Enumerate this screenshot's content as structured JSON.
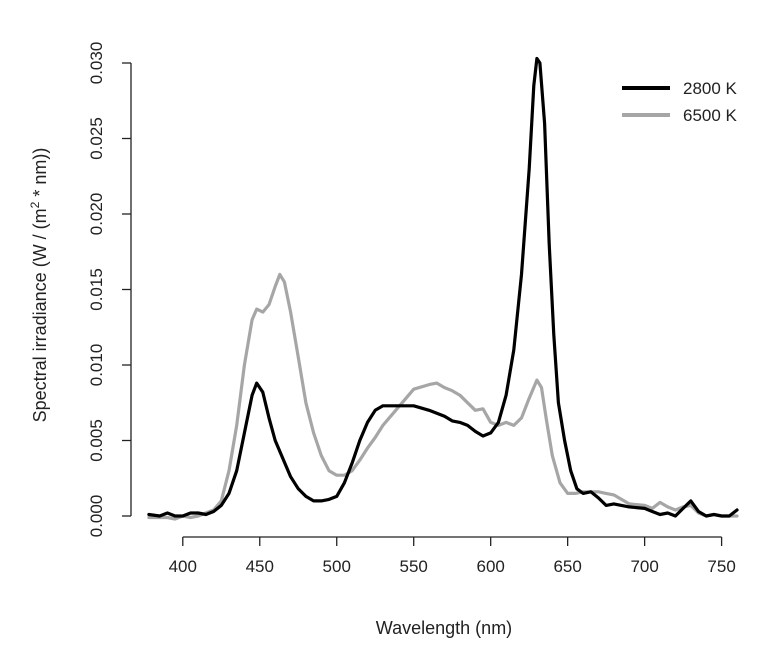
{
  "chart_data": {
    "type": "line",
    "xlabel": "Wavelength (nm)",
    "ylabel_pre": "Spectral irradiance (W / (m",
    "ylabel_sup": "2",
    "ylabel_post": " * nm))",
    "xlim": [
      380,
      760
    ],
    "ylim": [
      0,
      0.03
    ],
    "xticks": [
      400,
      450,
      500,
      550,
      600,
      650,
      700,
      750
    ],
    "yticks": [
      "0.000",
      "0.005",
      "0.010",
      "0.015",
      "0.020",
      "0.025",
      "0.030"
    ],
    "grid": false,
    "legend_position": "top-right",
    "series": [
      {
        "name": "2800 K",
        "color": "#000000",
        "points": [
          [
            378,
            0.0001
          ],
          [
            385,
            0.0
          ],
          [
            390,
            0.0002
          ],
          [
            395,
            0.0
          ],
          [
            400,
            0.0
          ],
          [
            405,
            0.0002
          ],
          [
            410,
            0.0002
          ],
          [
            415,
            0.0001
          ],
          [
            420,
            0.0003
          ],
          [
            425,
            0.0007
          ],
          [
            430,
            0.0015
          ],
          [
            435,
            0.003
          ],
          [
            440,
            0.0055
          ],
          [
            445,
            0.008
          ],
          [
            448,
            0.0088
          ],
          [
            452,
            0.0082
          ],
          [
            456,
            0.0065
          ],
          [
            460,
            0.005
          ],
          [
            465,
            0.0038
          ],
          [
            470,
            0.0026
          ],
          [
            475,
            0.0018
          ],
          [
            480,
            0.0013
          ],
          [
            485,
            0.001
          ],
          [
            490,
            0.001
          ],
          [
            495,
            0.0011
          ],
          [
            500,
            0.0013
          ],
          [
            505,
            0.0022
          ],
          [
            510,
            0.0035
          ],
          [
            515,
            0.005
          ],
          [
            520,
            0.0062
          ],
          [
            525,
            0.007
          ],
          [
            530,
            0.0073
          ],
          [
            540,
            0.0073
          ],
          [
            550,
            0.0073
          ],
          [
            560,
            0.007
          ],
          [
            570,
            0.0066
          ],
          [
            575,
            0.0063
          ],
          [
            580,
            0.0062
          ],
          [
            585,
            0.006
          ],
          [
            590,
            0.0056
          ],
          [
            595,
            0.0053
          ],
          [
            600,
            0.0055
          ],
          [
            605,
            0.0062
          ],
          [
            610,
            0.008
          ],
          [
            615,
            0.011
          ],
          [
            620,
            0.016
          ],
          [
            625,
            0.023
          ],
          [
            628,
            0.0285
          ],
          [
            630,
            0.0303
          ],
          [
            632,
            0.03
          ],
          [
            635,
            0.026
          ],
          [
            638,
            0.018
          ],
          [
            641,
            0.012
          ],
          [
            644,
            0.0075
          ],
          [
            648,
            0.005
          ],
          [
            652,
            0.003
          ],
          [
            656,
            0.0018
          ],
          [
            660,
            0.0015
          ],
          [
            665,
            0.0016
          ],
          [
            670,
            0.0012
          ],
          [
            675,
            0.0007
          ],
          [
            680,
            0.0008
          ],
          [
            690,
            0.0006
          ],
          [
            700,
            0.0005
          ],
          [
            705,
            0.0003
          ],
          [
            710,
            0.0001
          ],
          [
            715,
            0.0002
          ],
          [
            720,
            0.0
          ],
          [
            725,
            0.0005
          ],
          [
            730,
            0.001
          ],
          [
            735,
            0.0003
          ],
          [
            740,
            0.0
          ],
          [
            745,
            0.0001
          ],
          [
            750,
            0.0
          ],
          [
            755,
            0.0
          ],
          [
            760,
            0.0004
          ]
        ]
      },
      {
        "name": "6500 K",
        "color": "#a6a6a6",
        "points": [
          [
            378,
            -0.0001
          ],
          [
            385,
            -0.0001
          ],
          [
            390,
            -0.0001
          ],
          [
            395,
            -0.0002
          ],
          [
            400,
            0.0
          ],
          [
            405,
            -0.0001
          ],
          [
            410,
            0.0
          ],
          [
            415,
            0.0002
          ],
          [
            420,
            0.0004
          ],
          [
            425,
            0.001
          ],
          [
            430,
            0.003
          ],
          [
            435,
            0.006
          ],
          [
            440,
            0.01
          ],
          [
            445,
            0.013
          ],
          [
            448,
            0.0137
          ],
          [
            452,
            0.0135
          ],
          [
            456,
            0.014
          ],
          [
            460,
            0.0152
          ],
          [
            463,
            0.016
          ],
          [
            466,
            0.0155
          ],
          [
            470,
            0.0135
          ],
          [
            475,
            0.0105
          ],
          [
            480,
            0.0075
          ],
          [
            485,
            0.0055
          ],
          [
            490,
            0.004
          ],
          [
            495,
            0.003
          ],
          [
            500,
            0.0027
          ],
          [
            505,
            0.0027
          ],
          [
            510,
            0.003
          ],
          [
            515,
            0.0037
          ],
          [
            520,
            0.0045
          ],
          [
            525,
            0.0052
          ],
          [
            530,
            0.006
          ],
          [
            540,
            0.0072
          ],
          [
            550,
            0.0084
          ],
          [
            560,
            0.0087
          ],
          [
            565,
            0.0088
          ],
          [
            570,
            0.0085
          ],
          [
            575,
            0.0083
          ],
          [
            580,
            0.008
          ],
          [
            585,
            0.0075
          ],
          [
            590,
            0.007
          ],
          [
            595,
            0.0071
          ],
          [
            600,
            0.0062
          ],
          [
            605,
            0.006
          ],
          [
            610,
            0.0062
          ],
          [
            615,
            0.006
          ],
          [
            620,
            0.0065
          ],
          [
            625,
            0.0078
          ],
          [
            630,
            0.009
          ],
          [
            633,
            0.0085
          ],
          [
            636,
            0.0065
          ],
          [
            640,
            0.004
          ],
          [
            645,
            0.0022
          ],
          [
            650,
            0.0015
          ],
          [
            655,
            0.0015
          ],
          [
            660,
            0.0016
          ],
          [
            665,
            0.0016
          ],
          [
            670,
            0.0016
          ],
          [
            675,
            0.0015
          ],
          [
            680,
            0.0014
          ],
          [
            690,
            0.0008
          ],
          [
            700,
            0.0007
          ],
          [
            705,
            0.0005
          ],
          [
            710,
            0.0009
          ],
          [
            715,
            0.0006
          ],
          [
            720,
            0.0004
          ],
          [
            725,
            0.0006
          ],
          [
            730,
            0.0007
          ],
          [
            735,
            0.0002
          ],
          [
            740,
            0.0
          ],
          [
            745,
            0.0001
          ],
          [
            750,
            0.0
          ],
          [
            755,
            0.0
          ],
          [
            760,
            0.0
          ]
        ]
      }
    ]
  }
}
